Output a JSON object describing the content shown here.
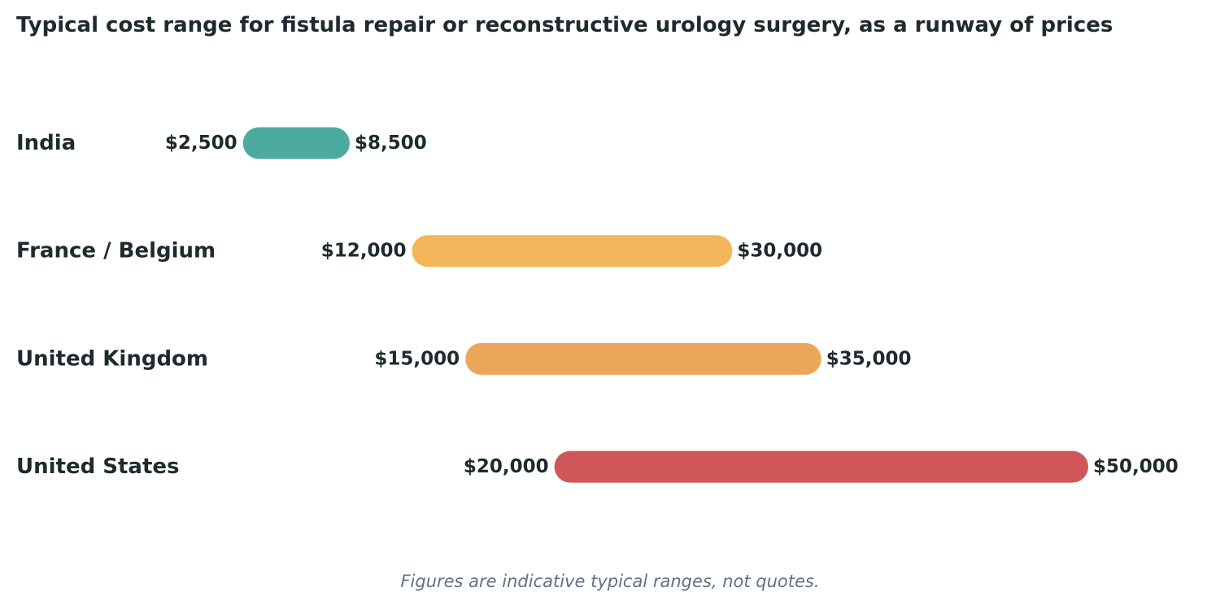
{
  "chart_data": {
    "type": "range-bar",
    "title": "Typical cost range for fistula repair or reconstructive urology surgery, as a runway of prices",
    "footnote": "Figures are indicative typical ranges, not quotes.",
    "currency_prefix": "$",
    "series": [
      {
        "category": "India",
        "low": 2500,
        "high": 8500,
        "low_label": "$2,500",
        "high_label": "$8,500",
        "color": "#4caaa0"
      },
      {
        "category": "France / Belgium",
        "low": 12000,
        "high": 30000,
        "low_label": "$12,000",
        "high_label": "$30,000",
        "color": "#f4b65a"
      },
      {
        "category": "United Kingdom",
        "low": 15000,
        "high": 35000,
        "low_label": "$15,000",
        "high_label": "$35,000",
        "color": "#eca65a"
      },
      {
        "category": "United States",
        "low": 20000,
        "high": 50000,
        "low_label": "$20,000",
        "high_label": "$50,000",
        "color": "#d05759"
      }
    ]
  }
}
